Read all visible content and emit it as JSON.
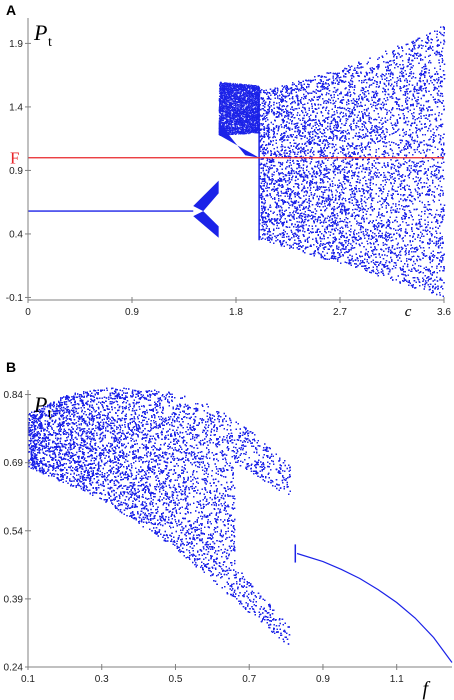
{
  "colors": {
    "points": "#1b22e8",
    "fixed_line": "#e8242a",
    "axis": "#808080"
  },
  "chart_data": [
    {
      "panel_label": "A",
      "type": "scatter",
      "variable": "P",
      "variable_sub": "t",
      "xlabel": "c",
      "xlim": [
        0,
        3.6
      ],
      "ylim": [
        -0.12,
        2.1
      ],
      "x_ticks": [
        "0",
        "0.9",
        "1.8",
        "2.7",
        "3.6"
      ],
      "y_ticks": [
        "-0.1",
        "0.4",
        "0.9",
        "1.4",
        "1.9"
      ],
      "grid": false,
      "hline": {
        "label": "F",
        "y": 1.0
      },
      "stable_branch": {
        "x": [
          0,
          1.43
        ],
        "y": [
          0.58,
          0.58
        ]
      },
      "regions": [
        {
          "name": "period-window",
          "x": [
            1.43,
            1.65
          ],
          "y_top": [
            0.58,
            0.82
          ],
          "y_bot": [
            0.58,
            0.37
          ]
        },
        {
          "name": "chaotic-small",
          "x": [
            1.65,
            2.0
          ],
          "y": [
            1.18,
            1.6
          ]
        },
        {
          "name": "chaotic-main",
          "x": [
            2.0,
            3.6
          ],
          "y_top": [
            1.55,
            2.05
          ],
          "y_bot": [
            0.35,
            -0.1
          ]
        }
      ]
    },
    {
      "panel_label": "B",
      "type": "scatter",
      "variable": "P",
      "variable_sub": "t",
      "xlabel": "f",
      "xlim": [
        0.1,
        1.25
      ],
      "ylim": [
        0.24,
        0.85
      ],
      "x_ticks": [
        "0.1",
        "0.3",
        "0.5",
        "0.7",
        "0.9",
        "1.1"
      ],
      "y_ticks": [
        "0.24",
        "0.39",
        "0.54",
        "0.69",
        "0.84"
      ],
      "grid": false,
      "stable_branch": {
        "x": [
          0.83,
          0.9,
          0.95,
          1.0,
          1.05,
          1.1,
          1.15,
          1.2,
          1.25
        ],
        "y": [
          0.49,
          0.472,
          0.455,
          0.435,
          0.41,
          0.382,
          0.348,
          0.305,
          0.25
        ]
      },
      "upper_arc": {
        "x": [
          0.1,
          0.2,
          0.3,
          0.4,
          0.5,
          0.6,
          0.7,
          0.81
        ],
        "y": [
          0.8,
          0.84,
          0.855,
          0.855,
          0.845,
          0.815,
          0.765,
          0.685
        ]
      },
      "lower_edge": {
        "x": [
          0.1,
          0.3,
          0.5,
          0.6,
          0.7,
          0.8
        ],
        "y": [
          0.68,
          0.61,
          0.5,
          0.43,
          0.36,
          0.29
        ]
      }
    }
  ]
}
